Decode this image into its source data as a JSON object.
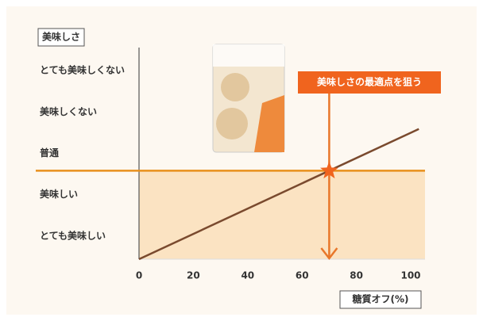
{
  "chart_data": {
    "type": "line",
    "y_label": "美味しさ",
    "x_label": "糖質オフ(%)",
    "annotation": "美味しさの最適点を狙う",
    "x": [
      0,
      103
    ],
    "values": [
      0.44,
      3.59
    ],
    "color": "#7a4a2e",
    "threshold": 2.58,
    "threshold_color": "#e8901c",
    "shade_color": "#fbe3c2",
    "target_x": 70,
    "target_color": "#f0641e",
    "xlim": [
      0,
      100
    ],
    "xticks": [
      0,
      20,
      40,
      60,
      80,
      100
    ],
    "ylim": [
      0.44,
      5.56
    ],
    "yticks": [
      {
        "value": 1,
        "label": "とても美味しい"
      },
      {
        "value": 2,
        "label": "美味しい"
      },
      {
        "value": 3,
        "label": "普通"
      },
      {
        "value": 4,
        "label": "美味しくない"
      },
      {
        "value": 5,
        "label": "とても美味しくない"
      }
    ]
  }
}
